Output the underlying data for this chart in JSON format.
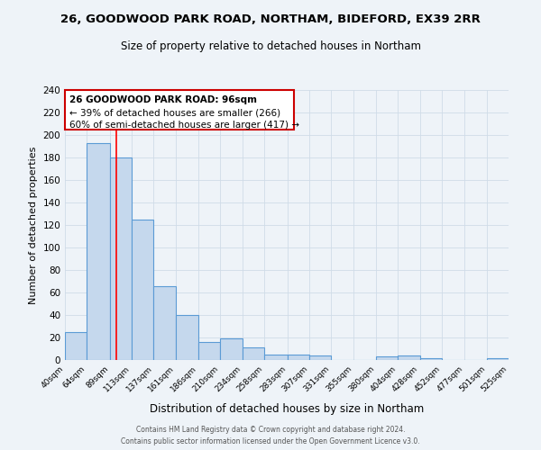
{
  "title1": "26, GOODWOOD PARK ROAD, NORTHAM, BIDEFORD, EX39 2RR",
  "title2": "Size of property relative to detached houses in Northam",
  "xlabel": "Distribution of detached houses by size in Northam",
  "ylabel": "Number of detached properties",
  "annotation_line1": "26 GOODWOOD PARK ROAD: 96sqm",
  "annotation_line2": "← 39% of detached houses are smaller (266)",
  "annotation_line3": "60% of semi-detached houses are larger (417) →",
  "footer1": "Contains HM Land Registry data © Crown copyright and database right 2024.",
  "footer2": "Contains public sector information licensed under the Open Government Licence v3.0.",
  "bin_edges": [
    40,
    64,
    89,
    113,
    137,
    161,
    186,
    210,
    234,
    258,
    283,
    307,
    331,
    355,
    380,
    404,
    428,
    452,
    477,
    501,
    525
  ],
  "bar_heights": [
    25,
    193,
    180,
    125,
    66,
    40,
    16,
    19,
    11,
    5,
    5,
    4,
    0,
    0,
    3,
    4,
    2,
    0,
    0,
    2
  ],
  "property_size": 96,
  "bar_color": "#c5d8ed",
  "bar_edge_color": "#5b9bd5",
  "red_line_x": 96,
  "ylim": [
    0,
    240
  ],
  "yticks": [
    0,
    20,
    40,
    60,
    80,
    100,
    120,
    140,
    160,
    180,
    200,
    220,
    240
  ],
  "bg_color": "#eef3f8",
  "grid_color": "#d0dce8",
  "annotation_box_color": "#ffffff",
  "annotation_box_edge": "#cc0000",
  "title1_fontsize": 9.5,
  "title2_fontsize": 8.5
}
